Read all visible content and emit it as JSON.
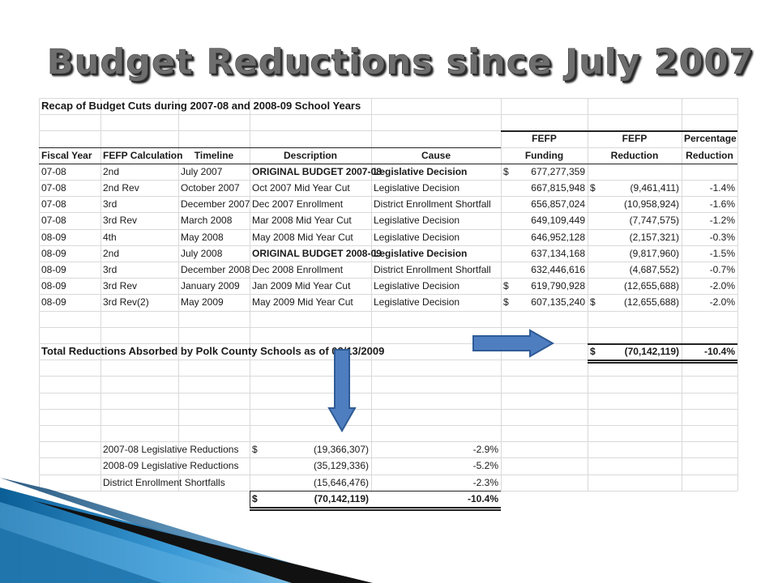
{
  "slide": {
    "title": "Budget Reductions since July 2007"
  },
  "sheet": {
    "recap_title": "Recap of Budget Cuts during 2007-08 and 2008-09 School Years",
    "group_headers": {
      "funding": "FEFP",
      "reduction": "FEFP",
      "percentage": "Percentage"
    },
    "headers": [
      "Fiscal Year",
      "FEFP Calculation",
      "Timeline",
      "Description",
      "Cause",
      "Funding",
      "Reduction",
      "Reduction"
    ],
    "rows": [
      {
        "fy": "07-08",
        "calc": "2nd",
        "time": "July 2007",
        "desc": "ORIGINAL BUDGET 2007-08",
        "desc_bold": true,
        "cause": "Legislative Decision",
        "cause_bold": true,
        "fund_sym": "$",
        "fund": "677,277,359",
        "red_sym": "",
        "red": "",
        "pct": ""
      },
      {
        "fy": "07-08",
        "calc": "2nd Rev",
        "time": "October 2007",
        "desc": "Oct 2007 Mid Year Cut",
        "desc_bold": false,
        "cause": "Legislative Decision",
        "cause_bold": false,
        "fund_sym": "",
        "fund": "667,815,948",
        "red_sym": "$",
        "red": "(9,461,411)",
        "pct": "-1.4%"
      },
      {
        "fy": "07-08",
        "calc": "3rd",
        "time": "December 2007",
        "desc": "Dec 2007 Enrollment",
        "desc_bold": false,
        "cause": "District Enrollment Shortfall",
        "cause_bold": false,
        "fund_sym": "",
        "fund": "656,857,024",
        "red_sym": "",
        "red": "(10,958,924)",
        "pct": "-1.6%"
      },
      {
        "fy": "07-08",
        "calc": "3rd Rev",
        "time": "March 2008",
        "desc": "Mar 2008 Mid Year Cut",
        "desc_bold": false,
        "cause": "Legislative Decision",
        "cause_bold": false,
        "fund_sym": "",
        "fund": "649,109,449",
        "red_sym": "",
        "red": "(7,747,575)",
        "pct": "-1.2%"
      },
      {
        "fy": "08-09",
        "calc": "4th",
        "time": "May 2008",
        "desc": "May 2008 Mid Year Cut",
        "desc_bold": false,
        "cause": "Legislative Decision",
        "cause_bold": false,
        "fund_sym": "",
        "fund": "646,952,128",
        "red_sym": "",
        "red": "(2,157,321)",
        "pct": "-0.3%"
      },
      {
        "fy": "08-09",
        "calc": "2nd",
        "time": "July 2008",
        "desc": "ORIGINAL BUDGET 2008-09",
        "desc_bold": true,
        "cause": "Legislative Decision",
        "cause_bold": true,
        "fund_sym": "",
        "fund": "637,134,168",
        "red_sym": "",
        "red": "(9,817,960)",
        "pct": "-1.5%"
      },
      {
        "fy": "08-09",
        "calc": "3rd",
        "time": "December 2008",
        "desc": "Dec 2008 Enrollment",
        "desc_bold": false,
        "cause": "District Enrollment Shortfall",
        "cause_bold": false,
        "fund_sym": "",
        "fund": "632,446,616",
        "red_sym": "",
        "red": "(4,687,552)",
        "pct": "-0.7%"
      },
      {
        "fy": "08-09",
        "calc": "3rd Rev",
        "time": "January 2009",
        "desc": "Jan 2009 Mid Year Cut",
        "desc_bold": false,
        "cause": "Legislative Decision",
        "cause_bold": false,
        "fund_sym": "$",
        "fund": "619,790,928",
        "red_sym": "",
        "red": "(12,655,688)",
        "pct": "-2.0%"
      },
      {
        "fy": "08-09",
        "calc": "3rd Rev(2)",
        "time": "May 2009",
        "desc": "May 2009 Mid Year Cut",
        "desc_bold": false,
        "cause": "Legislative Decision",
        "cause_bold": false,
        "fund_sym": "$",
        "fund": "607,135,240",
        "red_sym": "$",
        "red": "(12,655,688)",
        "pct": "-2.0%"
      }
    ],
    "total": {
      "label": "Total Reductions Absorbed by Polk County Schools as of 02/13/2009",
      "sym": "$",
      "value": "(70,142,119)",
      "pct": "-10.4%"
    },
    "summary": [
      {
        "label": "2007-08 Legislative Reductions",
        "sym": "$",
        "value": "(19,366,307)",
        "pct": "-2.9%"
      },
      {
        "label": "2008-09 Legislative Reductions",
        "sym": "",
        "value": "(35,129,336)",
        "pct": "-5.2%"
      },
      {
        "label": "District Enrollment Shortfalls",
        "sym": "",
        "value": "(15,646,476)",
        "pct": "-2.3%"
      }
    ],
    "summary_total": {
      "sym": "$",
      "value": "(70,142,119)",
      "pct": "-10.4%"
    }
  },
  "colors": {
    "arrow_fill": "#4f7ec0",
    "arrow_stroke": "#2e5b95",
    "title": "#6e6e6e"
  }
}
